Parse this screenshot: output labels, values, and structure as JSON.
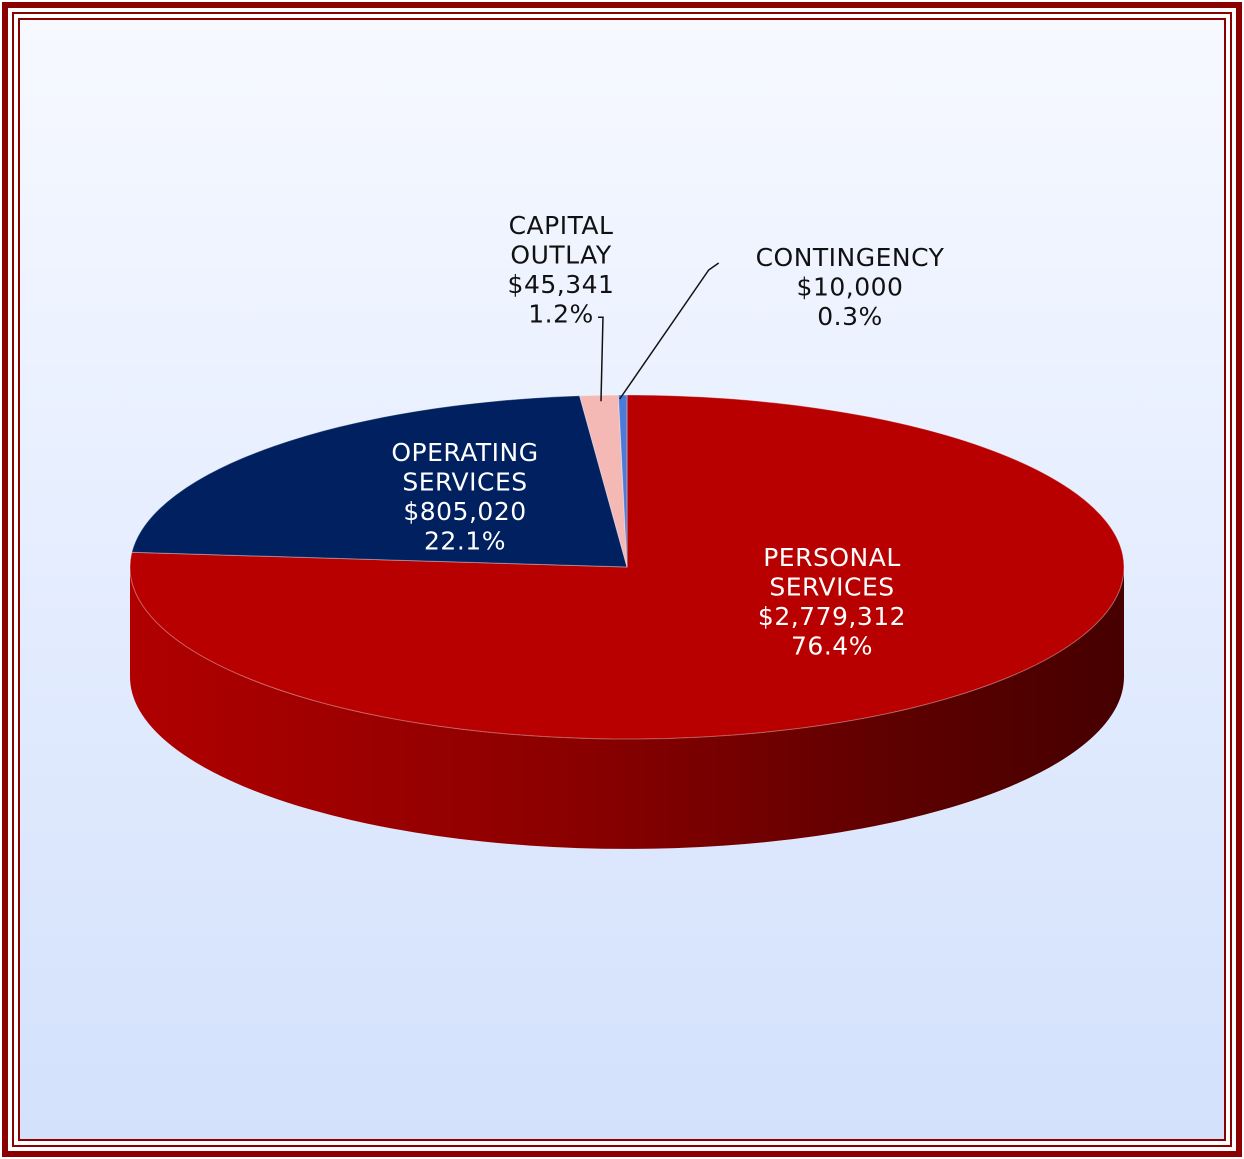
{
  "chart_data": {
    "type": "pie",
    "style": "3d",
    "colors": {
      "frame": "#8b0000",
      "personal_services": "#b80000",
      "operating_services": "#002060",
      "capital_outlay": "#f4b8b5",
      "contingency": "#4a7bd8"
    },
    "slices": [
      {
        "key": "personal_services",
        "lines": [
          "PERSONAL",
          "SERVICES",
          "$2,779,312",
          "76.4%"
        ],
        "value": 2779312,
        "percent": 76.4
      },
      {
        "key": "operating_services",
        "lines": [
          "OPERATING",
          "SERVICES",
          "$805,020",
          "22.1%"
        ],
        "value": 805020,
        "percent": 22.1
      },
      {
        "key": "capital_outlay",
        "lines": [
          "CAPITAL",
          "OUTLAY",
          "$45,341",
          "1.2%"
        ],
        "value": 45341,
        "percent": 1.2
      },
      {
        "key": "contingency",
        "lines": [
          "CONTINGENCY",
          "$10,000",
          "0.3%"
        ],
        "value": 10000,
        "percent": 0.3
      }
    ]
  }
}
